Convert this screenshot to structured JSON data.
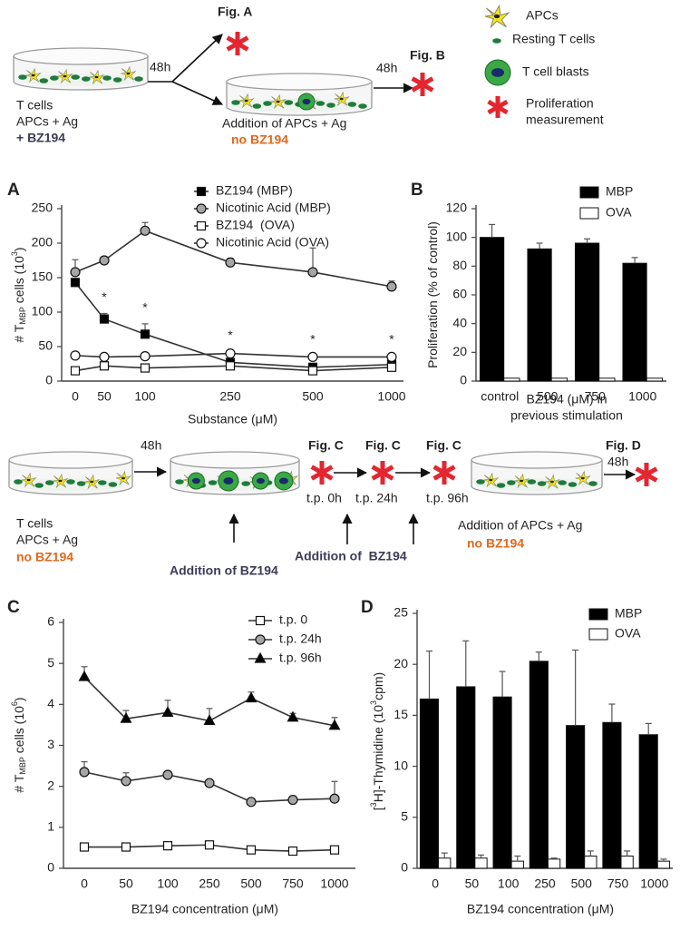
{
  "diagram_top": {
    "dish_labels": [
      "T cells",
      "APCs + Ag",
      "+ BZ194"
    ],
    "time_1": "48h",
    "fig_a": "Fig. A",
    "second_labels": [
      "Addition of APCs + Ag",
      "no BZ194"
    ],
    "time_2": "48h",
    "fig_b": "Fig. B"
  },
  "key": {
    "apcs": "APCs",
    "resting": "Resting T cells",
    "blasts": "T cell blasts",
    "proliferation": [
      "Proliferation",
      "measurement"
    ]
  },
  "diagram_middle": {
    "dish_labels": [
      "T cells",
      "APCs + Ag",
      "no BZ194"
    ],
    "time_1": "48h",
    "addition_1": "Addition of BZ194",
    "fig_c": [
      "Fig. C",
      "Fig. C",
      "Fig. C"
    ],
    "timepoints": [
      "t.p. 0h",
      "t.p. 24h",
      "t.p. 96h"
    ],
    "addition_2": "Addition of  BZ194",
    "last_labels": [
      "Addition of APCs + Ag",
      "no BZ194"
    ],
    "time_2": "48h",
    "fig_d": "Fig. D"
  },
  "chart_data": [
    {
      "type": "line",
      "panel": "A",
      "ylabel": [
        "# T",
        "MBP",
        " cells (10",
        "3",
        ")"
      ],
      "xlabel": "Substance (μM)",
      "categories": [
        "0",
        "50",
        "100",
        "250",
        "500",
        "1000"
      ],
      "ylim": [
        0,
        250
      ],
      "yticks": [
        0,
        50,
        100,
        150,
        200,
        250
      ],
      "significance": [
        null,
        "*",
        "*",
        "*",
        "*",
        "*"
      ],
      "series": [
        {
          "name": "BZ194 (MBP)",
          "color": "#000000",
          "marker": "square",
          "values": [
            143,
            90,
            68,
            27,
            20,
            24
          ],
          "errors": [
            5,
            8,
            15,
            3,
            3,
            3
          ]
        },
        {
          "name": "Nicotinic Acid (MBP)",
          "color": "#a6a6a6",
          "marker": "circle",
          "values": [
            158,
            175,
            218,
            172,
            158,
            137
          ],
          "errors": [
            18,
            3,
            12,
            6,
            35,
            8
          ]
        },
        {
          "name": "BZ194  (OVA)",
          "color": "#ffffff",
          "marker": "square",
          "values": [
            15,
            22,
            19,
            22,
            15,
            20
          ],
          "errors": [
            4,
            8,
            4,
            5,
            6,
            6
          ]
        },
        {
          "name": "Nicotinic Acid (OVA)",
          "color": "#ffffff",
          "marker": "circle",
          "values": [
            37,
            35,
            36,
            40,
            35,
            35
          ],
          "errors": [
            2,
            2,
            2,
            3,
            2,
            2
          ]
        }
      ]
    },
    {
      "type": "bar",
      "panel": "B",
      "ylabel": [
        "Proliferation (% of control)"
      ],
      "xlabel": [
        "BZ194 (μM) in",
        "previous stimulation"
      ],
      "categories": [
        "control",
        "500",
        "750",
        "1000"
      ],
      "ylim": [
        0,
        120
      ],
      "yticks": [
        0,
        20,
        40,
        60,
        80,
        100,
        120
      ],
      "series": [
        {
          "name": "MBP",
          "color": "#000000",
          "values": [
            100,
            92,
            96,
            82
          ],
          "errors": [
            9,
            4,
            3,
            4
          ]
        },
        {
          "name": "OVA",
          "color": "#ffffff",
          "values": [
            2,
            2,
            2,
            2
          ]
        }
      ]
    },
    {
      "type": "line",
      "panel": "C",
      "ylabel": [
        "# T",
        "MBP",
        " cells (10",
        "6",
        ")"
      ],
      "xlabel": "BZ194 concentration (μM)",
      "categories": [
        "0",
        "50",
        "100",
        "250",
        "500",
        "750",
        "1000"
      ],
      "ylim": [
        0,
        6
      ],
      "yticks": [
        0,
        1,
        2,
        3,
        4,
        5,
        6
      ],
      "series": [
        {
          "name": "t.p. 0",
          "color": "#ffffff",
          "marker": "square",
          "values": [
            0.52,
            0.52,
            0.55,
            0.57,
            0.45,
            0.42,
            0.45
          ],
          "errors": [
            0.05,
            0.04,
            0.04,
            0.05,
            0.04,
            0.03,
            0.04
          ]
        },
        {
          "name": "t.p. 24h",
          "color": "#a6a6a6",
          "marker": "circle",
          "values": [
            2.35,
            2.13,
            2.28,
            2.08,
            1.62,
            1.67,
            1.7
          ],
          "errors": [
            0.25,
            0.2,
            0.05,
            0.05,
            0.02,
            0.05,
            0.42
          ]
        },
        {
          "name": "t.p. 96h",
          "color": "#000000",
          "marker": "triangle",
          "values": [
            4.67,
            3.65,
            3.8,
            3.6,
            4.15,
            3.68,
            3.48
          ],
          "errors": [
            0.25,
            0.2,
            0.3,
            0.3,
            0.15,
            0.1,
            0.2
          ]
        }
      ]
    },
    {
      "type": "bar",
      "panel": "D",
      "ylabel": [
        "[",
        "3",
        "H]-Thymidine (10",
        "3",
        "cpm)"
      ],
      "xlabel": "BZ194 concentration (μM)",
      "categories": [
        "0",
        "50",
        "100",
        "250",
        "500",
        "750",
        "1000"
      ],
      "ylim": [
        0,
        25
      ],
      "yticks": [
        0,
        5,
        10,
        15,
        20,
        25
      ],
      "series": [
        {
          "name": "MBP",
          "color": "#000000",
          "values": [
            16.6,
            17.8,
            16.8,
            20.3,
            14.0,
            14.3,
            13.1
          ],
          "errors": [
            4.7,
            4.5,
            2.5,
            0.9,
            7.4,
            1.8,
            1.1
          ]
        },
        {
          "name": "OVA",
          "color": "#ffffff",
          "values": [
            1.0,
            1.0,
            0.7,
            0.9,
            1.2,
            1.2,
            0.7
          ],
          "errors": [
            0.5,
            0.3,
            0.5,
            0.1,
            0.5,
            0.5,
            0.2
          ]
        }
      ]
    }
  ]
}
